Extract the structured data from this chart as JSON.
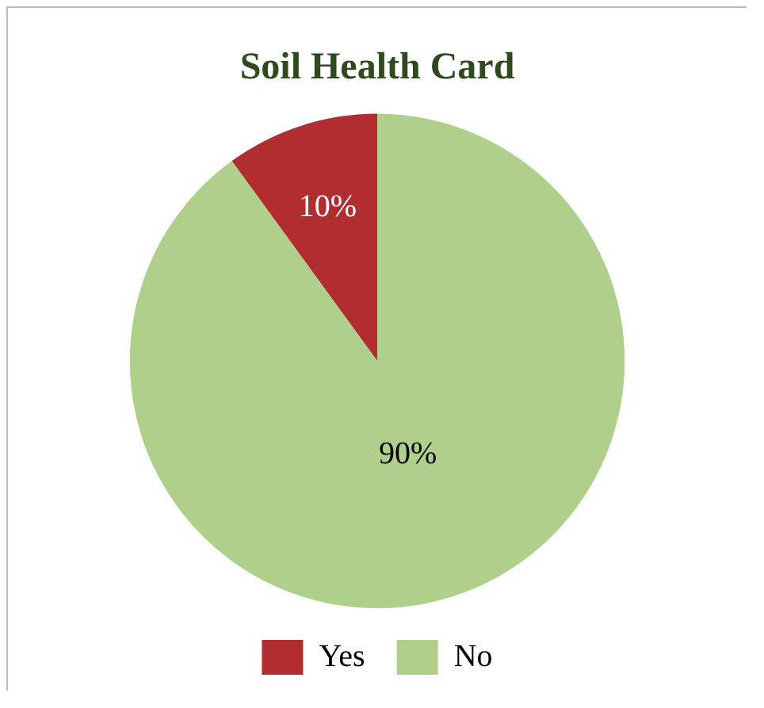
{
  "chart_data": {
    "type": "pie",
    "title": "Soil Health Card",
    "categories": [
      "Yes",
      "No"
    ],
    "values": [
      10,
      90
    ],
    "colors": [
      "#b22d30",
      "#aed08a"
    ],
    "value_labels": [
      "10%",
      "90%"
    ],
    "legend": "bottom"
  }
}
